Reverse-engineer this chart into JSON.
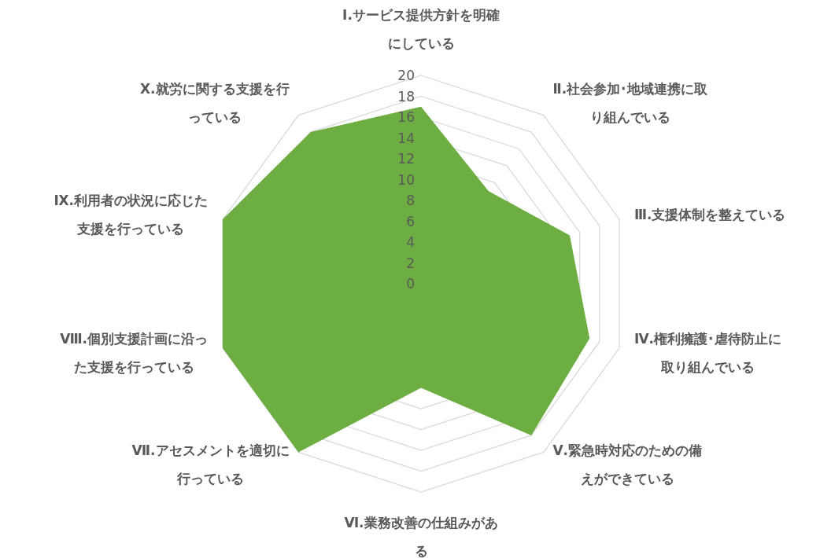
{
  "chart_data": {
    "type": "radar",
    "categories": [
      "Ⅰ.サービス提供方針を明確にしている",
      "Ⅱ.社会参加･地域連携に取り組んでいる",
      "Ⅲ.支援体制を整えている",
      "Ⅳ.権利擁護･虐待防止に取り組んでいる",
      "Ⅴ.緊急時対応のための備えができている",
      "Ⅵ.業務改善の仕組みがある",
      "Ⅶ.アセスメントを適切に行っている",
      "Ⅷ.個別支援計画に沿った支援を行っている",
      "Ⅸ.利用者の状況に応じた支援を行っている",
      "Ⅹ.就労に関する支援を行っている"
    ],
    "series": [
      {
        "color": "#6cae41",
        "values": [
          17,
          11,
          15,
          17,
          18,
          10,
          20,
          20,
          20,
          18
        ]
      }
    ],
    "ylim": [
      0,
      20
    ],
    "yticks": [
      0,
      2,
      4,
      6,
      8,
      10,
      12,
      14,
      16,
      18,
      20
    ],
    "grid": true
  }
}
